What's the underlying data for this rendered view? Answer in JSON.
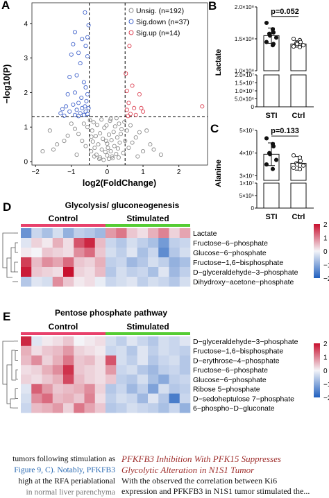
{
  "panels": {
    "a": {
      "letter": "A"
    },
    "b": {
      "letter": "B"
    },
    "c": {
      "letter": "C"
    },
    "d": {
      "letter": "D",
      "title": "Glycolysis/ gluconeogenesis"
    },
    "e": {
      "letter": "E",
      "title": "Pentose phosphate pathway"
    }
  },
  "colors": {
    "unsig": "#8c8c8c",
    "down": "#4466cc",
    "up": "#dd4455",
    "control_bar": "#e8416b",
    "stim_bar": "#55cc33",
    "hm_high": "#c8102e",
    "hm_mid": "#f4f4f8",
    "hm_low": "#1f5fbf"
  },
  "chart_data": [
    {
      "type": "scatter",
      "panel": "A",
      "xlabel": "log2(FoldChange)",
      "ylabel": "−log10(P)",
      "xlim": [
        -2.1,
        2.8
      ],
      "ylim": [
        -0.1,
        4.6
      ],
      "xticks": [
        "−2",
        "−1",
        "0",
        "1",
        "2"
      ],
      "yticks": [
        "0",
        "1",
        "2",
        "3",
        "4"
      ],
      "thresholds": {
        "x": [
          -0.5,
          0.5
        ],
        "y": 1.3
      },
      "legend": [
        {
          "key": "unsig",
          "label": "Unsig. (n=192)"
        },
        {
          "key": "down",
          "label": "Sig.down (n=37)"
        },
        {
          "key": "up",
          "label": "Sig.up (n=14)"
        }
      ],
      "legend_placement": "top-right",
      "series": [
        {
          "name": "Sig.down",
          "key": "down",
          "points": [
            [
              -0.62,
              4.32
            ],
            [
              -0.52,
              3.95
            ],
            [
              -0.9,
              3.75
            ],
            [
              -0.55,
              3.6
            ],
            [
              -0.7,
              3.55
            ],
            [
              -0.95,
              3.4
            ],
            [
              -0.6,
              3.35
            ],
            [
              -0.8,
              3.15
            ],
            [
              -1.0,
              3.1
            ],
            [
              -0.55,
              3.05
            ],
            [
              -0.75,
              2.85
            ],
            [
              -0.85,
              2.5
            ],
            [
              -1.05,
              2.45
            ],
            [
              -0.65,
              2.3
            ],
            [
              -0.6,
              2.15
            ],
            [
              -0.9,
              2.0
            ],
            [
              -0.55,
              1.95
            ],
            [
              -1.1,
              1.95
            ],
            [
              -0.72,
              1.85
            ],
            [
              -0.58,
              1.75
            ],
            [
              -0.8,
              1.7
            ],
            [
              -0.95,
              1.65
            ],
            [
              -0.62,
              1.6
            ],
            [
              -1.15,
              1.6
            ],
            [
              -0.7,
              1.55
            ],
            [
              -0.52,
              1.55
            ],
            [
              -1.25,
              1.52
            ],
            [
              -0.85,
              1.5
            ],
            [
              -0.6,
              1.45
            ],
            [
              -1.05,
              1.45
            ],
            [
              -0.75,
              1.4
            ],
            [
              -1.3,
              1.4
            ],
            [
              -0.55,
              1.38
            ],
            [
              -0.9,
              1.35
            ],
            [
              -0.65,
              1.35
            ],
            [
              -1.2,
              1.33
            ],
            [
              -0.8,
              1.32
            ]
          ]
        },
        {
          "name": "Sig.up",
          "key": "up",
          "points": [
            [
              0.62,
              3.35
            ],
            [
              0.52,
              2.55
            ],
            [
              0.7,
              2.2
            ],
            [
              0.55,
              2.05
            ],
            [
              0.9,
              1.95
            ],
            [
              0.6,
              1.7
            ],
            [
              0.75,
              1.55
            ],
            [
              0.95,
              1.55
            ],
            [
              0.55,
              1.5
            ],
            [
              1.0,
              1.45
            ],
            [
              0.65,
              1.38
            ],
            [
              0.8,
              1.35
            ],
            [
              0.58,
              1.32
            ],
            [
              2.65,
              1.6
            ]
          ]
        },
        {
          "name": "Unsig.",
          "key": "unsig",
          "points": [
            [
              -0.1,
              0.05
            ],
            [
              0.05,
              0.08
            ],
            [
              -0.2,
              0.12
            ],
            [
              0.15,
              0.1
            ],
            [
              0.0,
              0.18
            ],
            [
              -0.3,
              0.2
            ],
            [
              0.25,
              0.22
            ],
            [
              -0.05,
              0.28
            ],
            [
              0.1,
              0.3
            ],
            [
              -0.15,
              0.35
            ],
            [
              0.3,
              0.38
            ],
            [
              -0.35,
              0.4
            ],
            [
              0.2,
              0.45
            ],
            [
              -0.25,
              0.5
            ],
            [
              0.0,
              0.52
            ],
            [
              0.35,
              0.55
            ],
            [
              -0.4,
              0.58
            ],
            [
              0.12,
              0.62
            ],
            [
              -0.12,
              0.66
            ],
            [
              0.28,
              0.7
            ],
            [
              -0.32,
              0.74
            ],
            [
              0.05,
              0.78
            ],
            [
              -0.2,
              0.82
            ],
            [
              0.18,
              0.86
            ],
            [
              -0.42,
              0.9
            ],
            [
              0.4,
              0.94
            ],
            [
              -0.08,
              0.98
            ],
            [
              0.22,
              1.02
            ],
            [
              -0.28,
              1.06
            ],
            [
              0.33,
              1.1
            ],
            [
              -0.38,
              1.14
            ],
            [
              0.08,
              1.18
            ],
            [
              -0.16,
              1.22
            ],
            [
              0.26,
              1.26
            ],
            [
              -0.45,
              0.3
            ],
            [
              0.45,
              0.25
            ],
            [
              -0.6,
              0.45
            ],
            [
              0.6,
              0.4
            ],
            [
              -0.7,
              0.6
            ],
            [
              0.7,
              0.55
            ],
            [
              -0.8,
              0.8
            ],
            [
              0.8,
              0.7
            ],
            [
              -0.9,
              0.95
            ],
            [
              0.9,
              0.85
            ],
            [
              -1.0,
              1.1
            ],
            [
              1.0,
              0.3
            ],
            [
              -1.2,
              0.6
            ],
            [
              1.2,
              0.5
            ],
            [
              -1.5,
              0.35
            ],
            [
              1.5,
              0.2
            ],
            [
              -1.8,
              0.3
            ],
            [
              -1.4,
              0.5
            ],
            [
              0.55,
              0.9
            ],
            [
              -0.55,
              1.0
            ],
            [
              0.02,
              0.4
            ],
            [
              -0.03,
              0.6
            ],
            [
              0.14,
              0.15
            ],
            [
              -0.22,
              0.08
            ],
            [
              0.32,
              0.12
            ],
            [
              -0.36,
              0.15
            ],
            [
              0.48,
              1.15
            ],
            [
              -0.48,
              1.2
            ],
            [
              0.65,
              1.05
            ],
            [
              -0.65,
              1.1
            ],
            [
              1.1,
              0.9
            ],
            [
              -1.1,
              0.75
            ],
            [
              0.85,
              0.15
            ],
            [
              -0.85,
              0.2
            ],
            [
              0.38,
              0.8
            ],
            [
              -0.44,
              0.72
            ],
            [
              -1.6,
              0.9
            ],
            [
              1.3,
              0.35
            ],
            [
              0.1,
              1.24
            ],
            [
              -0.02,
              1.05
            ],
            [
              0.5,
              0.6
            ]
          ]
        }
      ]
    },
    {
      "type": "bar",
      "panel": "B",
      "ylabel": "Lactate",
      "categories": [
        "STI",
        "Ctrl"
      ],
      "values": [
        155000000.0,
        142000000.0
      ],
      "errors": [
        12000000.0,
        5000000.0
      ],
      "yticks_upper": [
        "1.0×10⁸",
        "1.5×10⁸",
        "2.0×10⁸"
      ],
      "yticks_lower": [
        "0",
        "5.0×10⁶",
        "1.0×10⁷",
        "1.5×10⁷",
        "2.0×10⁷"
      ],
      "pvalue": "p=0.052",
      "points": [
        [
          175000000.0,
          165000000.0,
          160000000.0,
          158000000.0,
          155000000.0,
          152000000.0,
          145000000.0,
          140000000.0,
          142000000.0
        ],
        [
          150000000.0,
          148000000.0,
          145000000.0,
          143000000.0,
          142000000.0,
          140000000.0,
          138000000.0,
          137000000.0
        ]
      ]
    },
    {
      "type": "bar",
      "panel": "C",
      "ylabel": "Alanine",
      "categories": [
        "STI",
        "Ctrl"
      ],
      "values": [
        39500000.0,
        35500000.0
      ],
      "errors": [
        5000000.0,
        3000000.0
      ],
      "yticks_upper": [
        "3×10⁷",
        "4×10⁷",
        "5×10⁷"
      ],
      "yticks_lower": [
        "0",
        "5×10⁶",
        "1×10⁷"
      ],
      "pvalue": "p=0.133",
      "points": [
        [
          46500000.0,
          44000000.0,
          43000000.0,
          40000000.0,
          39500000.0,
          37000000.0,
          35000000.0,
          33000000.0
        ],
        [
          39000000.0,
          38000000.0,
          36500000.0,
          35500000.0,
          35000000.0,
          34500000.0,
          33500000.0,
          33000000.0
        ]
      ]
    },
    {
      "type": "heatmap",
      "panel": "D",
      "groups": [
        {
          "label": "Control",
          "count": 8
        },
        {
          "label": "Stimulated",
          "count": 8
        }
      ],
      "rows": [
        "Lactate",
        "Fructose−6−phosphate",
        "Glucose−6−phosphate",
        "Fructose−1,6−bisphosphate",
        "D−glyceraldehyde−3−phosphate",
        "Dihydroxy−acetone−phosphate"
      ],
      "scale": {
        "min": -2,
        "max": 2,
        "ticks": [
          "2",
          "1",
          "0",
          "−1",
          "−2"
        ]
      },
      "values": [
        [
          -1.3,
          -0.4,
          -0.7,
          -0.3,
          -0.9,
          -0.5,
          -0.6,
          -0.8,
          0.8,
          1.1,
          0.4,
          0.2,
          0.6,
          1.0,
          0.3,
          0.7
        ],
        [
          -0.2,
          0.3,
          0.1,
          0.6,
          0.2,
          1.4,
          1.8,
          0.5,
          -0.4,
          -0.6,
          -0.3,
          -0.5,
          -0.7,
          -1.2,
          -0.5,
          -0.4
        ],
        [
          0.1,
          0.0,
          0.4,
          0.3,
          0.2,
          0.9,
          1.2,
          0.4,
          -0.3,
          -0.5,
          -0.2,
          -0.7,
          -0.4,
          -1.4,
          -0.6,
          -0.3
        ],
        [
          1.6,
          0.5,
          0.9,
          0.7,
          1.2,
          0.4,
          0.3,
          0.6,
          -0.5,
          -0.4,
          -0.8,
          -0.6,
          -0.3,
          -0.5,
          -0.9,
          -0.7
        ],
        [
          1.9,
          0.4,
          0.3,
          0.2,
          2.1,
          0.3,
          0.2,
          0.5,
          -0.6,
          -0.3,
          -0.5,
          -0.4,
          -0.7,
          -0.2,
          -0.8,
          -0.5
        ],
        [
          -0.6,
          -0.2,
          -0.3,
          0.9,
          0.4,
          0.1,
          0.2,
          -0.1,
          -0.4,
          -0.3,
          -0.2,
          -0.5,
          -0.3,
          -0.4,
          -0.6,
          -0.3
        ]
      ]
    },
    {
      "type": "heatmap",
      "panel": "E",
      "groups": [
        {
          "label": "Control",
          "count": 8
        },
        {
          "label": "Stimulated",
          "count": 8
        }
      ],
      "rows": [
        "D−glyceraldehyde−3−phosphate",
        "Fructose−1,6−bisphosphate",
        "D−erythrose−4−phosphate",
        "Fructose−6−phosphate",
        "Glucose−6−phosphate",
        "Ribose 5−phosphate",
        "D−sedoheptulose 7−phosphate",
        "6−phospho−D−gluconate"
      ],
      "scale": {
        "min": -2,
        "max": 2,
        "ticks": [
          "2",
          "1",
          "0",
          "−1",
          "−2"
        ]
      },
      "values": [
        [
          1.8,
          -0.2,
          0.1,
          0.2,
          0.4,
          0.0,
          0.1,
          0.2,
          -0.3,
          -0.5,
          -0.2,
          -0.4,
          -0.6,
          -0.3,
          -0.4,
          -0.2
        ],
        [
          0.6,
          0.2,
          0.4,
          0.5,
          0.8,
          0.3,
          0.2,
          0.1,
          -0.4,
          -0.3,
          -0.6,
          -0.2,
          -0.5,
          -0.3,
          -0.4,
          -0.5
        ],
        [
          0.5,
          0.9,
          0.3,
          0.6,
          1.1,
          0.4,
          0.5,
          0.2,
          1.4,
          -0.3,
          -0.5,
          -0.2,
          -0.6,
          -0.4,
          -0.3,
          -0.6
        ],
        [
          0.2,
          0.3,
          0.6,
          0.9,
          1.7,
          0.4,
          0.3,
          0.2,
          0.8,
          -0.4,
          -0.3,
          -0.6,
          -0.8,
          -0.5,
          -0.4,
          -0.6
        ],
        [
          0.3,
          0.2,
          0.4,
          0.6,
          1.5,
          0.5,
          0.3,
          0.2,
          0.4,
          -0.5,
          -0.6,
          -0.3,
          -0.7,
          -1.0,
          -0.5,
          -0.4
        ],
        [
          -0.2,
          1.3,
          0.8,
          0.4,
          0.5,
          0.6,
          0.9,
          0.3,
          -0.6,
          -0.4,
          -0.8,
          -0.5,
          -1.1,
          -0.3,
          -0.6,
          -0.5
        ],
        [
          -0.3,
          0.9,
          1.2,
          0.5,
          0.6,
          0.4,
          1.0,
          0.2,
          -0.5,
          -0.3,
          -0.4,
          -0.8,
          -0.2,
          -0.6,
          -1.6,
          -0.4
        ],
        [
          -0.4,
          0.5,
          0.6,
          0.8,
          0.3,
          1.1,
          0.7,
          0.4,
          -0.6,
          -0.5,
          -0.3,
          -0.4,
          -0.5,
          -0.7,
          -0.4,
          -0.9
        ]
      ]
    }
  ],
  "bottom_text": {
    "left_lines": [
      "tumors following stimulation as",
      "Figure 9, C). Notably, PFKFB3",
      "high at the RFA periablational",
      "in normal liver parenchyma"
    ],
    "cite_label": "Figure 9",
    "heading_line1": "PFKFB3 Inhibition With PFK15 Suppresses",
    "heading_line2": "Glycolytic Alteration in N1S1 Tumor",
    "body_line1": "With the observed the correlation between Ki6",
    "body_line2": "expression and PFKFB3 in N1S1 tumor stimulated the..."
  }
}
